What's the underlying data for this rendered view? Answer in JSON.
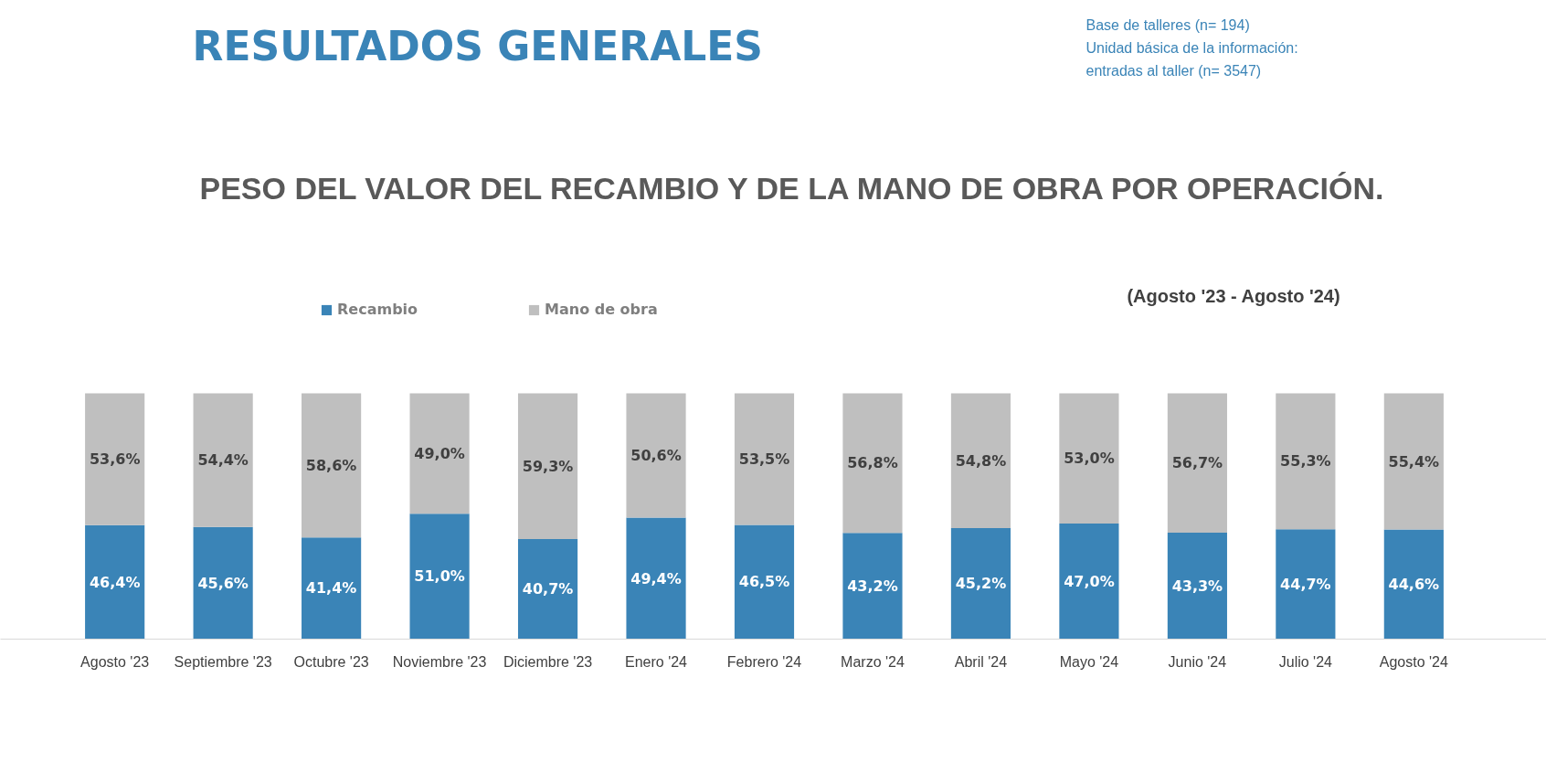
{
  "chart_data": {
    "type": "bar",
    "stacked": true,
    "title": "PESO DEL VALOR DEL RECAMBIO Y DE LA MANO DE OBRA POR OPERACIÓN.",
    "subtitle": "(Agosto '23  -  Agosto '24)",
    "annotations": [
      "RESULTADOS GENERALES",
      "Base de talleres (n= 194)",
      "Unidad básica de la información:",
      "entradas al taller (n= 3547)"
    ],
    "categories": [
      "Agosto '23",
      "Septiembre '23",
      "Octubre '23",
      "Noviembre '23",
      "Diciembre '23",
      "Enero '24",
      "Febrero '24",
      "Marzo '24",
      "Abril '24",
      "Mayo '24",
      "Junio '24",
      "Julio '24",
      "Agosto '24"
    ],
    "series": [
      {
        "name": "Recambio",
        "color": "#3a84b7",
        "values": [
          46.4,
          45.6,
          41.4,
          51.0,
          40.7,
          49.4,
          46.5,
          43.2,
          45.2,
          47.0,
          43.3,
          44.7,
          44.6
        ],
        "value_labels": [
          "46,4%",
          "45,6%",
          "41,4%",
          "51,0%",
          "40,7%",
          "49,4%",
          "46,5%",
          "43,2%",
          "45,2%",
          "47,0%",
          "43,3%",
          "44,7%",
          "44,6%"
        ]
      },
      {
        "name": "Mano de obra",
        "color": "#bfbfbf",
        "values": [
          53.6,
          54.4,
          58.6,
          49.0,
          59.3,
          50.6,
          53.5,
          56.8,
          54.8,
          53.0,
          56.7,
          55.3,
          55.4
        ],
        "value_labels": [
          "53,6%",
          "54,4%",
          "58,6%",
          "49,0%",
          "59,3%",
          "50,6%",
          "53,5%",
          "56,8%",
          "54,8%",
          "53,0%",
          "56,7%",
          "55,3%",
          "55,4%"
        ]
      }
    ],
    "legend": "top",
    "grid": false
  }
}
